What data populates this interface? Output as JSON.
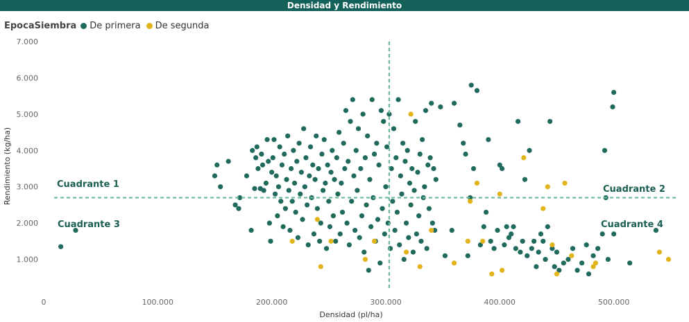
{
  "title": "Densidad y Rendimiento",
  "legend": {
    "title": "EpocaSiembra",
    "items": [
      {
        "label": "De primera",
        "color": "#1f6a5c"
      },
      {
        "label": "De segunda",
        "color": "#e2b41c"
      }
    ]
  },
  "chart_data": {
    "type": "scatter",
    "xlabel": "Densidad (pl/ha)",
    "ylabel": "Rendimiento (kg/ha)",
    "xlim": [
      0,
      555000
    ],
    "ylim": [
      0,
      7000
    ],
    "x_ticks": [
      0,
      100000,
      200000,
      300000,
      400000,
      500000
    ],
    "x_tick_labels": [
      "0",
      "100.000",
      "200.000",
      "300.000",
      "400.000",
      "500.000"
    ],
    "y_ticks": [
      1000,
      2000,
      3000,
      4000,
      5000,
      6000,
      7000
    ],
    "y_tick_labels": [
      "1.000",
      "2.000",
      "3.000",
      "4.000",
      "5.000",
      "6.000",
      "7.000"
    ],
    "reference_lines": {
      "x": 303000,
      "y": 2700,
      "color": "#6bb89a",
      "style": "dashed"
    },
    "quadrant_labels": [
      "Cuadrante 1",
      "Cuadrante 2",
      "Cuadrante 3",
      "Cuadrante 4"
    ],
    "series": [
      {
        "name": "De primera",
        "color": "#1f6a5c",
        "points": [
          [
            15000,
            1350
          ],
          [
            28000,
            1800
          ],
          [
            150000,
            3300
          ],
          [
            152000,
            3600
          ],
          [
            155000,
            3000
          ],
          [
            162000,
            3700
          ],
          [
            168000,
            2500
          ],
          [
            171000,
            2400
          ],
          [
            172000,
            2700
          ],
          [
            178000,
            3300
          ],
          [
            182000,
            1800
          ],
          [
            183000,
            4000
          ],
          [
            185000,
            2950
          ],
          [
            186000,
            3800
          ],
          [
            187000,
            4100
          ],
          [
            188000,
            3500
          ],
          [
            190000,
            2950
          ],
          [
            191000,
            3900
          ],
          [
            192000,
            3600
          ],
          [
            193000,
            2900
          ],
          [
            195000,
            3100
          ],
          [
            196000,
            4300
          ],
          [
            197000,
            3700
          ],
          [
            198000,
            2000
          ],
          [
            199000,
            1500
          ],
          [
            200000,
            3400
          ],
          [
            201000,
            3800
          ],
          [
            202000,
            4300
          ],
          [
            203000,
            2800
          ],
          [
            204000,
            3300
          ],
          [
            205000,
            2200
          ],
          [
            206000,
            3000
          ],
          [
            207000,
            4100
          ],
          [
            208000,
            2600
          ],
          [
            209000,
            3600
          ],
          [
            210000,
            1900
          ],
          [
            211000,
            3900
          ],
          [
            212000,
            2400
          ],
          [
            213000,
            3200
          ],
          [
            214000,
            4400
          ],
          [
            215000,
            2900
          ],
          [
            216000,
            1800
          ],
          [
            217000,
            3500
          ],
          [
            218000,
            2600
          ],
          [
            219000,
            4000
          ],
          [
            220000,
            3100
          ],
          [
            221000,
            2300
          ],
          [
            222000,
            3700
          ],
          [
            223000,
            1600
          ],
          [
            224000,
            4200
          ],
          [
            225000,
            2800
          ],
          [
            226000,
            3400
          ],
          [
            227000,
            2100
          ],
          [
            228000,
            4600
          ],
          [
            229000,
            3000
          ],
          [
            230000,
            3800
          ],
          [
            231000,
            2500
          ],
          [
            232000,
            1400
          ],
          [
            233000,
            3300
          ],
          [
            234000,
            4100
          ],
          [
            235000,
            2700
          ],
          [
            236000,
            3600
          ],
          [
            237000,
            1700
          ],
          [
            238000,
            3200
          ],
          [
            239000,
            4400
          ],
          [
            240000,
            2400
          ],
          [
            241000,
            3500
          ],
          [
            242000,
            1500
          ],
          [
            243000,
            2000
          ],
          [
            244000,
            3900
          ],
          [
            245000,
            2900
          ],
          [
            246000,
            4300
          ],
          [
            247000,
            3100
          ],
          [
            248000,
            1300
          ],
          [
            249000,
            3600
          ],
          [
            250000,
            2600
          ],
          [
            251000,
            1900
          ],
          [
            252000,
            3400
          ],
          [
            253000,
            4000
          ],
          [
            254000,
            2200
          ],
          [
            255000,
            3200
          ],
          [
            256000,
            1500
          ],
          [
            257000,
            3800
          ],
          [
            258000,
            2800
          ],
          [
            259000,
            4500
          ],
          [
            260000,
            1700
          ],
          [
            261000,
            3100
          ],
          [
            262000,
            2300
          ],
          [
            263000,
            4200
          ],
          [
            264000,
            3500
          ],
          [
            265000,
            5100
          ],
          [
            266000,
            2000
          ],
          [
            267000,
            3700
          ],
          [
            268000,
            1400
          ],
          [
            269000,
            4800
          ],
          [
            270000,
            2600
          ],
          [
            271000,
            5400
          ],
          [
            272000,
            3300
          ],
          [
            273000,
            1800
          ],
          [
            274000,
            4000
          ],
          [
            275000,
            2900
          ],
          [
            276000,
            4600
          ],
          [
            277000,
            1600
          ],
          [
            278000,
            3500
          ],
          [
            279000,
            2200
          ],
          [
            280000,
            5000
          ],
          [
            281000,
            1200
          ],
          [
            282000,
            3800
          ],
          [
            283000,
            2500
          ],
          [
            284000,
            4400
          ],
          [
            285000,
            700
          ],
          [
            286000,
            3200
          ],
          [
            287000,
            1900
          ],
          [
            288000,
            5400
          ],
          [
            289000,
            2700
          ],
          [
            290000,
            3900
          ],
          [
            291000,
            1500
          ],
          [
            292000,
            4200
          ],
          [
            293000,
            2100
          ],
          [
            294000,
            3600
          ],
          [
            295000,
            900
          ],
          [
            296000,
            5100
          ],
          [
            297000,
            2400
          ],
          [
            298000,
            4800
          ],
          [
            299000,
            1700
          ],
          [
            300000,
            3000
          ],
          [
            301000,
            4100
          ],
          [
            302000,
            2000
          ],
          [
            303000,
            5000
          ],
          [
            304000,
            1300
          ],
          [
            305000,
            3500
          ],
          [
            306000,
            2600
          ],
          [
            307000,
            4600
          ],
          [
            308000,
            1800
          ],
          [
            309000,
            3800
          ],
          [
            310000,
            2300
          ],
          [
            311000,
            5400
          ],
          [
            312000,
            1400
          ],
          [
            313000,
            3300
          ],
          [
            314000,
            2800
          ],
          [
            315000,
            4200
          ],
          [
            316000,
            1000
          ],
          [
            317000,
            3700
          ],
          [
            318000,
            2000
          ],
          [
            319000,
            4000
          ],
          [
            320000,
            1600
          ],
          [
            321000,
            3100
          ],
          [
            322000,
            2500
          ],
          [
            323000,
            3500
          ],
          [
            324000,
            1200
          ],
          [
            325000,
            2900
          ],
          [
            326000,
            4800
          ],
          [
            327000,
            1700
          ],
          [
            328000,
            3400
          ],
          [
            329000,
            2200
          ],
          [
            330000,
            3900
          ],
          [
            331000,
            1500
          ],
          [
            332000,
            4300
          ],
          [
            333000,
            2700
          ],
          [
            334000,
            3000
          ],
          [
            335000,
            5100
          ],
          [
            336000,
            1300
          ],
          [
            337000,
            3600
          ],
          [
            338000,
            2400
          ],
          [
            339000,
            3800
          ],
          [
            340000,
            5300
          ],
          [
            341000,
            2000
          ],
          [
            342000,
            3500
          ],
          [
            343000,
            1800
          ],
          [
            344000,
            3200
          ],
          [
            348000,
            5200
          ],
          [
            352000,
            1100
          ],
          [
            358000,
            1800
          ],
          [
            360000,
            5300
          ],
          [
            365000,
            4700
          ],
          [
            368000,
            4200
          ],
          [
            370000,
            3900
          ],
          [
            372000,
            1100
          ],
          [
            374000,
            2700
          ],
          [
            375000,
            5800
          ],
          [
            377000,
            3500
          ],
          [
            380000,
            5650
          ],
          [
            383000,
            1400
          ],
          [
            386000,
            1900
          ],
          [
            388000,
            2300
          ],
          [
            390000,
            4300
          ],
          [
            392000,
            1500
          ],
          [
            395000,
            1300
          ],
          [
            398000,
            1800
          ],
          [
            400000,
            3600
          ],
          [
            402000,
            3500
          ],
          [
            404000,
            1400
          ],
          [
            406000,
            1900
          ],
          [
            408000,
            1600
          ],
          [
            410000,
            1700
          ],
          [
            412000,
            1900
          ],
          [
            414000,
            1300
          ],
          [
            416000,
            4800
          ],
          [
            418000,
            1200
          ],
          [
            420000,
            1500
          ],
          [
            422000,
            3200
          ],
          [
            424000,
            1100
          ],
          [
            426000,
            4000
          ],
          [
            428000,
            1300
          ],
          [
            430000,
            1500
          ],
          [
            432000,
            800
          ],
          [
            434000,
            1200
          ],
          [
            436000,
            1700
          ],
          [
            438000,
            1500
          ],
          [
            440000,
            1000
          ],
          [
            442000,
            1900
          ],
          [
            444000,
            4800
          ],
          [
            446000,
            1300
          ],
          [
            448000,
            800
          ],
          [
            450000,
            1200
          ],
          [
            452000,
            700
          ],
          [
            456000,
            900
          ],
          [
            460000,
            1000
          ],
          [
            464000,
            1300
          ],
          [
            468000,
            700
          ],
          [
            472000,
            900
          ],
          [
            476000,
            1400
          ],
          [
            478000,
            600
          ],
          [
            482000,
            1100
          ],
          [
            486000,
            1300
          ],
          [
            490000,
            1700
          ],
          [
            492000,
            4000
          ],
          [
            493000,
            2700
          ],
          [
            495000,
            1000
          ],
          [
            499000,
            5200
          ],
          [
            500000,
            5600
          ],
          [
            500000,
            1700
          ],
          [
            514000,
            900
          ],
          [
            537000,
            1800
          ]
        ]
      },
      {
        "name": "De segunda",
        "color": "#e2b41c",
        "points": [
          [
            218000,
            1500
          ],
          [
            240000,
            2100
          ],
          [
            243000,
            800
          ],
          [
            252000,
            1500
          ],
          [
            282000,
            1000
          ],
          [
            290000,
            1500
          ],
          [
            318000,
            1200
          ],
          [
            322000,
            5000
          ],
          [
            330000,
            800
          ],
          [
            340000,
            1800
          ],
          [
            360000,
            900
          ],
          [
            372000,
            1500
          ],
          [
            374000,
            2600
          ],
          [
            380000,
            3100
          ],
          [
            385000,
            1500
          ],
          [
            393000,
            600
          ],
          [
            400000,
            2800
          ],
          [
            402000,
            700
          ],
          [
            421000,
            3800
          ],
          [
            438000,
            2400
          ],
          [
            442000,
            3000
          ],
          [
            446000,
            1400
          ],
          [
            450000,
            600
          ],
          [
            457000,
            3100
          ],
          [
            463000,
            1100
          ],
          [
            482000,
            800
          ],
          [
            484000,
            900
          ],
          [
            540000,
            1200
          ],
          [
            548000,
            1000
          ]
        ]
      }
    ]
  }
}
